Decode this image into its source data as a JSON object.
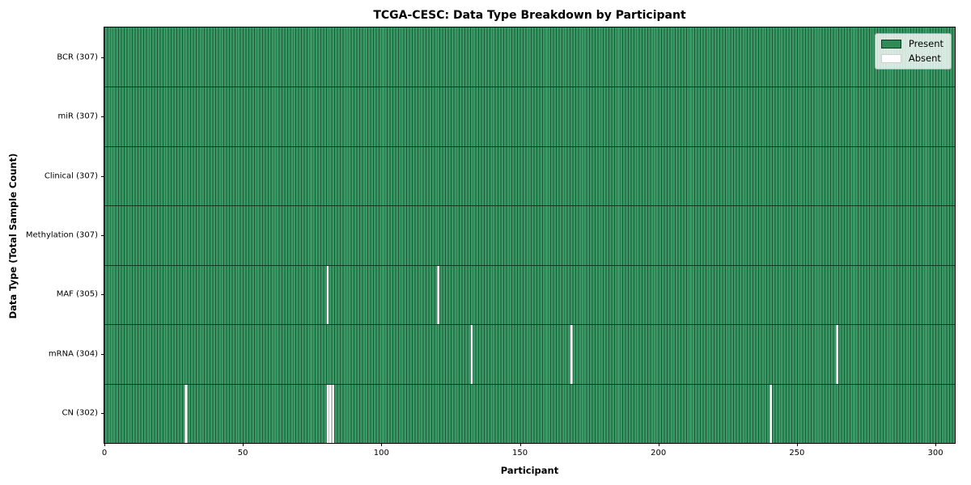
{
  "chart_data": {
    "type": "heatmap",
    "title": "TCGA-CESC: Data Type Breakdown by Participant",
    "xlabel": "Participant",
    "ylabel": "Data Type (Total Sample Count)",
    "n_participants": 307,
    "x_ticks": [
      0,
      50,
      100,
      150,
      200,
      250,
      300
    ],
    "x_range": [
      0,
      307
    ],
    "grid": false,
    "legend_position": "upper right",
    "rows": [
      {
        "name": "BCR",
        "label": "BCR (307)",
        "total": 307,
        "absent_participants": []
      },
      {
        "name": "miR",
        "label": "miR (307)",
        "total": 307,
        "absent_participants": []
      },
      {
        "name": "Clinical",
        "label": "Clinical (307)",
        "total": 307,
        "absent_participants": []
      },
      {
        "name": "Methylation",
        "label": "Methylation (307)",
        "total": 307,
        "absent_participants": []
      },
      {
        "name": "MAF",
        "label": "MAF (305)",
        "total": 305,
        "absent_participants": [
          80,
          120
        ]
      },
      {
        "name": "mRNA",
        "label": "mRNA (304)",
        "total": 304,
        "absent_participants": [
          132,
          168,
          264
        ]
      },
      {
        "name": "CN",
        "label": "CN (302)",
        "total": 302,
        "absent_participants": [
          29,
          80,
          81,
          82,
          240
        ]
      }
    ],
    "legend": [
      {
        "label": "Present",
        "color": "#2e8b57"
      },
      {
        "label": "Absent",
        "color": "#ffffff"
      }
    ],
    "colors": {
      "present": "#3a9a66",
      "absent": "#ffffff",
      "cell_line": "rgba(14, 48, 29, 0.62)",
      "row_separator": "rgba(5, 32, 18, 0.78)",
      "plot_border": "#000000",
      "legend_border": "#b4b4b4"
    }
  }
}
